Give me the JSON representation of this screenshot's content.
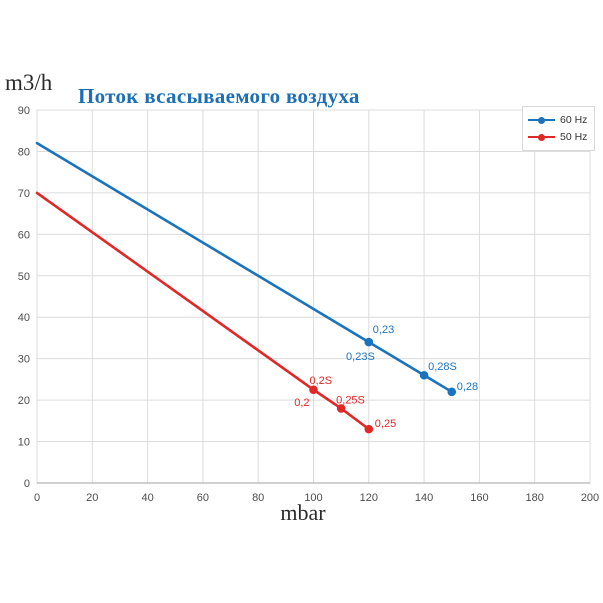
{
  "chart_data": {
    "type": "line",
    "title": "Поток всасываемого воздуха",
    "title_color": "#1d6fb5",
    "ylabel": "m3/h",
    "xlabel": "mbar",
    "xlim": [
      0,
      200
    ],
    "xtick_step": 20,
    "xticks": [
      0,
      20,
      40,
      60,
      80,
      100,
      120,
      140,
      160,
      180,
      200
    ],
    "ylim": [
      0,
      90
    ],
    "ytick_step": 10,
    "yticks": [
      0,
      10,
      20,
      30,
      40,
      50,
      60,
      70,
      80,
      90
    ],
    "grid": true,
    "grid_color": "#dcdcdc",
    "axis_color": "#b3b3b3",
    "legend_position": "top-right",
    "series": [
      {
        "name": "60 Hz",
        "color": "#1a73be",
        "points": [
          {
            "x": 0,
            "y": 82
          },
          {
            "x": 120,
            "y": 34,
            "marker": true,
            "labels": [
              {
                "text": "0,23",
                "dx": 4,
                "dy": -9,
                "anchor": "start"
              },
              {
                "text": "0,23S",
                "dx": 6,
                "dy": 18,
                "anchor": "end"
              }
            ]
          },
          {
            "x": 140,
            "y": 26,
            "marker": true,
            "labels": [
              {
                "text": "0,28S",
                "dx": 4,
                "dy": -5,
                "anchor": "start"
              }
            ]
          },
          {
            "x": 150,
            "y": 22,
            "marker": true,
            "labels": [
              {
                "text": "0,28",
                "dx": 5,
                "dy": -2,
                "anchor": "start"
              }
            ]
          }
        ]
      },
      {
        "name": "50 Hz",
        "color": "#e12826",
        "points": [
          {
            "x": 0,
            "y": 70
          },
          {
            "x": 100,
            "y": 22.5,
            "marker": true,
            "labels": [
              {
                "text": "0,2S",
                "dx": -4,
                "dy": -6,
                "anchor": "start"
              },
              {
                "text": "0,2",
                "dx": -4,
                "dy": 16,
                "anchor": "end"
              }
            ]
          },
          {
            "x": 110,
            "y": 18,
            "marker": true,
            "labels": [
              {
                "text": "0,25S",
                "dx": -5,
                "dy": -5,
                "anchor": "start"
              }
            ]
          },
          {
            "x": 120,
            "y": 13,
            "marker": true,
            "labels": [
              {
                "text": "0,25",
                "dx": 6,
                "dy": -2,
                "anchor": "start"
              }
            ]
          }
        ]
      }
    ]
  }
}
